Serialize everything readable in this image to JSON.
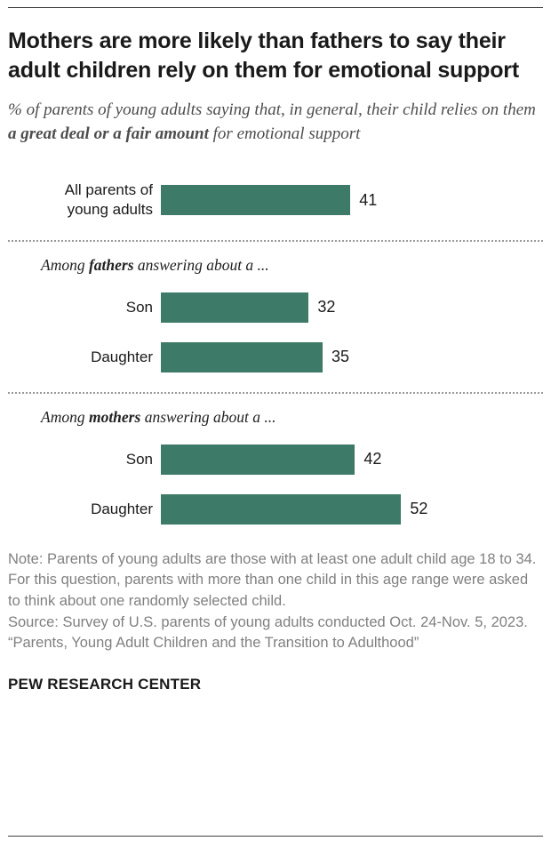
{
  "chart_data": {
    "type": "bar",
    "orientation": "horizontal",
    "unit": "%",
    "xlim": [
      0,
      60
    ],
    "bar_color": "#3d7a68",
    "title": "Mothers are more likely than fathers to say their adult children rely on them for emotional support",
    "subtitle_prefix": "% of parents of young adults saying that, in general, their child relies on them ",
    "subtitle_bold": "a great deal or a fair amount",
    "subtitle_suffix": " for emotional support",
    "groups": [
      {
        "rows": [
          {
            "label": "All parents of young adults",
            "value": 41
          }
        ]
      },
      {
        "section_prefix": "Among ",
        "section_bold": "fathers",
        "section_suffix": " answering about a ...",
        "rows": [
          {
            "label": "Son",
            "value": 32
          },
          {
            "label": "Daughter",
            "value": 35
          }
        ]
      },
      {
        "section_prefix": "Among ",
        "section_bold": "mothers",
        "section_suffix": " answering about a ...",
        "rows": [
          {
            "label": "Son",
            "value": 42
          },
          {
            "label": "Daughter",
            "value": 52
          }
        ]
      }
    ]
  },
  "footer": {
    "note": "Note: Parents of young adults are those with at least one adult child age 18 to 34. For this question, parents with more than one child in this age range were asked to think about one randomly selected child.",
    "source": "Source: Survey of U.S. parents of young adults conducted Oct. 24-Nov. 5, 2023.",
    "quote": "“Parents, Young Adult Children and the Transition to Adulthood”",
    "brand": "PEW RESEARCH CENTER"
  }
}
